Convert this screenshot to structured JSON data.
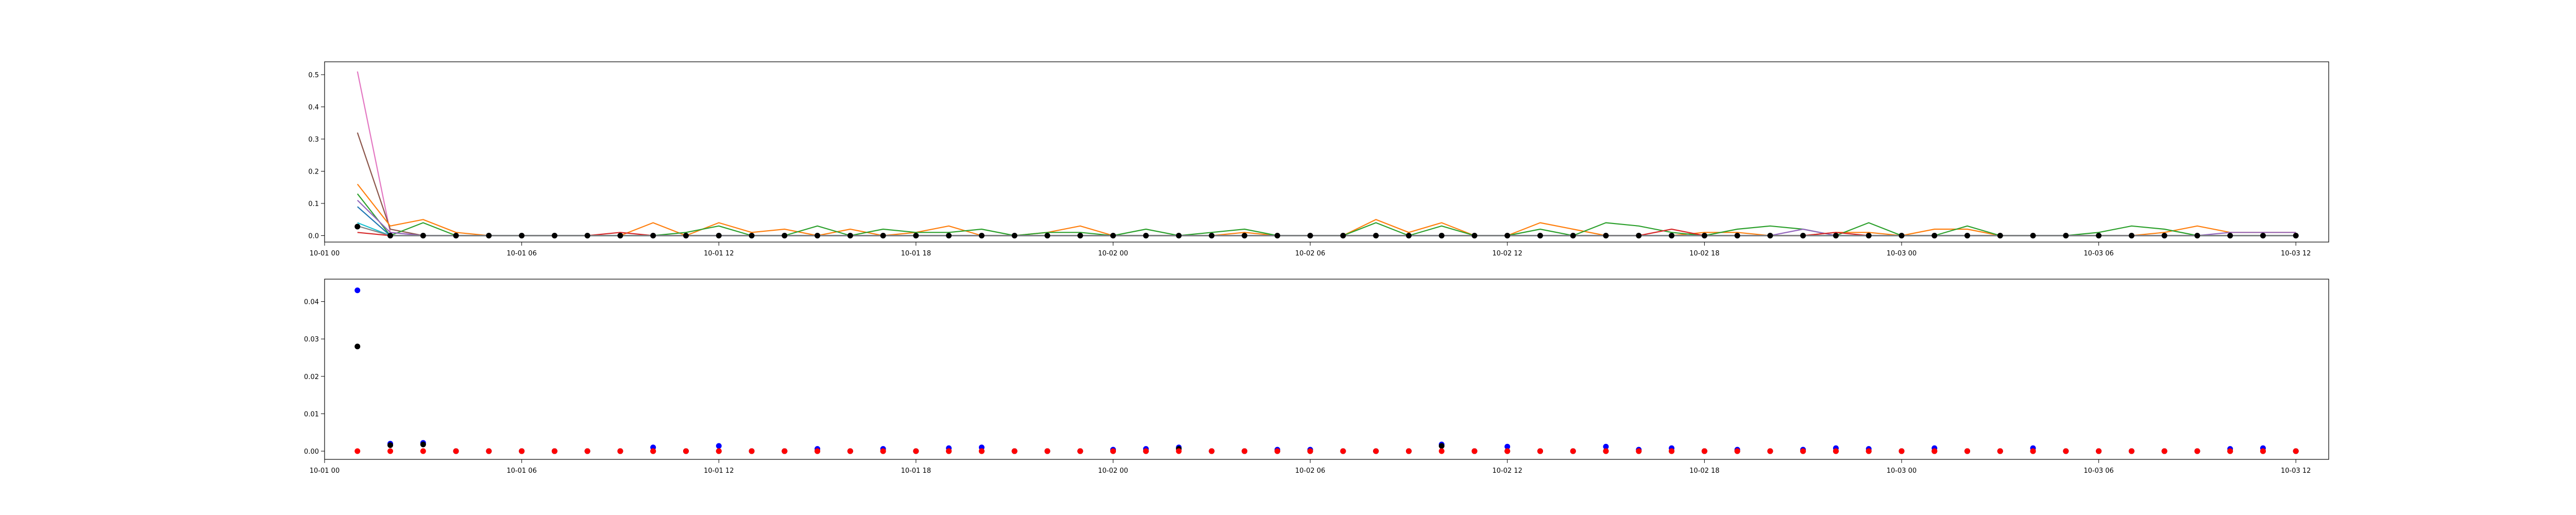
{
  "figure": {
    "background": "#ffffff"
  },
  "chart_data": [
    {
      "type": "line",
      "title": "",
      "xlabel": "",
      "ylabel": "",
      "grid": false,
      "legend": "none",
      "x_domain": [
        "10-01 00:00",
        "10-03 13:00"
      ],
      "ylim": [
        -0.02,
        0.54
      ],
      "x_ticks": [
        {
          "t": "10-01 00:00",
          "label": "10-01 00"
        },
        {
          "t": "10-01 06:00",
          "label": "10-01 06"
        },
        {
          "t": "10-01 12:00",
          "label": "10-01 12"
        },
        {
          "t": "10-01 18:00",
          "label": "10-01 18"
        },
        {
          "t": "10-02 00:00",
          "label": "10-02 00"
        },
        {
          "t": "10-02 06:00",
          "label": "10-02 06"
        },
        {
          "t": "10-02 12:00",
          "label": "10-02 12"
        },
        {
          "t": "10-02 18:00",
          "label": "10-02 18"
        },
        {
          "t": "10-03 00:00",
          "label": "10-03 00"
        },
        {
          "t": "10-03 06:00",
          "label": "10-03 06"
        },
        {
          "t": "10-03 12:00",
          "label": "10-03 12"
        }
      ],
      "y_ticks": [
        {
          "value": 0.0,
          "label": "0.0"
        },
        {
          "value": 0.1,
          "label": "0.1"
        },
        {
          "value": 0.2,
          "label": "0.2"
        },
        {
          "value": 0.3,
          "label": "0.3"
        },
        {
          "value": 0.4,
          "label": "0.4"
        },
        {
          "value": 0.5,
          "label": "0.5"
        }
      ],
      "x_start": "10-01 01:00",
      "x_step_hours": 1,
      "x_count": 60,
      "series": [
        {
          "color": "#e377c2",
          "style": "line",
          "values": [
            0.51,
            0.01,
            0,
            0,
            0,
            0,
            0,
            0,
            0,
            0,
            0,
            0,
            0,
            0,
            0,
            0,
            0,
            0,
            0,
            0,
            0,
            0,
            0,
            0,
            0,
            0,
            0,
            0,
            0,
            0,
            0,
            0,
            0,
            0,
            0,
            0,
            0,
            0,
            0,
            0,
            0,
            0,
            0,
            0,
            0,
            0,
            0,
            0,
            0,
            0,
            0,
            0,
            0,
            0,
            0,
            0,
            0,
            0,
            0,
            0
          ]
        },
        {
          "color": "#8c564b",
          "style": "line",
          "values": [
            0.32,
            0.02,
            0,
            0,
            0,
            0,
            0,
            0,
            0,
            0,
            0,
            0,
            0,
            0,
            0,
            0,
            0,
            0,
            0,
            0,
            0,
            0,
            0,
            0,
            0,
            0,
            0,
            0,
            0,
            0,
            0,
            0,
            0,
            0,
            0,
            0,
            0,
            0,
            0,
            0,
            0,
            0,
            0,
            0,
            0,
            0,
            0,
            0,
            0,
            0,
            0,
            0,
            0,
            0,
            0,
            0,
            0,
            0,
            0,
            0
          ]
        },
        {
          "color": "#ff7f0e",
          "style": "line",
          "values": [
            0.16,
            0.03,
            0.05,
            0.01,
            0,
            0,
            0,
            0,
            0,
            0.04,
            0,
            0.04,
            0.01,
            0.02,
            0,
            0.02,
            0,
            0.01,
            0.03,
            0,
            0,
            0.01,
            0.03,
            0,
            0,
            0,
            0,
            0.01,
            0,
            0,
            0,
            0.05,
            0.01,
            0.04,
            0,
            0,
            0.04,
            0.02,
            0,
            0,
            0,
            0.01,
            0.01,
            0,
            0,
            0.01,
            0.01,
            0,
            0.02,
            0.02,
            0,
            0,
            0,
            0,
            0,
            0.01,
            0.03,
            0.01,
            0.01,
            0.01
          ]
        },
        {
          "color": "#2ca02c",
          "style": "line",
          "values": [
            0.13,
            0,
            0.04,
            0,
            0,
            0,
            0,
            0,
            0,
            0,
            0.01,
            0.03,
            0,
            0,
            0.03,
            0,
            0.02,
            0.01,
            0.01,
            0.02,
            0,
            0.01,
            0.01,
            0,
            0.02,
            0,
            0.01,
            0.02,
            0,
            0,
            0,
            0.04,
            0,
            0.03,
            0,
            0,
            0.02,
            0,
            0.04,
            0.03,
            0.01,
            0,
            0.02,
            0.03,
            0.02,
            0,
            0.04,
            0,
            0,
            0.03,
            0,
            0,
            0,
            0.01,
            0.03,
            0.02,
            0,
            0,
            0,
            0
          ]
        },
        {
          "color": "#9467bd",
          "style": "line",
          "values": [
            0.11,
            0.01,
            0,
            0,
            0,
            0,
            0,
            0,
            0,
            0,
            0,
            0,
            0,
            0,
            0,
            0,
            0,
            0,
            0,
            0,
            0,
            0,
            0,
            0,
            0,
            0,
            0,
            0,
            0,
            0,
            0,
            0,
            0,
            0,
            0,
            0,
            0,
            0,
            0,
            0,
            0,
            0,
            0,
            0,
            0.02,
            0,
            0,
            0,
            0,
            0,
            0,
            0,
            0,
            0,
            0,
            0,
            0,
            0.01,
            0.01,
            0.01
          ]
        },
        {
          "color": "#1f77b4",
          "style": "line",
          "values": [
            0.09,
            0,
            0,
            0,
            0,
            0,
            0,
            0,
            0,
            0,
            0,
            0,
            0,
            0,
            0,
            0,
            0,
            0,
            0,
            0,
            0,
            0,
            0,
            0,
            0,
            0,
            0,
            0,
            0,
            0,
            0,
            0,
            0,
            0,
            0,
            0,
            0,
            0,
            0,
            0,
            0,
            0,
            0,
            0,
            0,
            0,
            0,
            0,
            0,
            0,
            0,
            0,
            0,
            0,
            0,
            0,
            0,
            0,
            0,
            0
          ]
        },
        {
          "color": "#d62728",
          "style": "line",
          "values": [
            0.01,
            0,
            0,
            0,
            0,
            0,
            0,
            0,
            0.01,
            0,
            0,
            0,
            0,
            0,
            0,
            0,
            0,
            0,
            0,
            0,
            0,
            0,
            0,
            0,
            0,
            0,
            0,
            0,
            0,
            0,
            0,
            0,
            0,
            0,
            0,
            0,
            0,
            0,
            0,
            0,
            0.02,
            0,
            0,
            0,
            0,
            0.01,
            0,
            0,
            0,
            0,
            0,
            0,
            0,
            0,
            0,
            0,
            0,
            0,
            0,
            0
          ]
        },
        {
          "color": "#17becf",
          "style": "line",
          "values": [
            0.04,
            0,
            0,
            0,
            0,
            0,
            0,
            0,
            0,
            0,
            0,
            0,
            0,
            0,
            0,
            0,
            0,
            0,
            0,
            0,
            0,
            0,
            0,
            0,
            0,
            0,
            0,
            0,
            0,
            0,
            0,
            0,
            0,
            0,
            0,
            0,
            0,
            0,
            0,
            0,
            0,
            0,
            0,
            0,
            0,
            0,
            0,
            0,
            0,
            0,
            0,
            0,
            0,
            0,
            0,
            0,
            0,
            0,
            0,
            0
          ]
        },
        {
          "color": "#7f7f7f",
          "style": "line",
          "values": [
            0.03,
            0,
            0,
            0,
            0,
            0,
            0,
            0,
            0,
            0,
            0,
            0,
            0,
            0,
            0,
            0,
            0,
            0,
            0,
            0,
            0,
            0,
            0,
            0,
            0,
            0,
            0,
            0,
            0,
            0,
            0,
            0,
            0,
            0,
            0,
            0,
            0,
            0,
            0,
            0,
            0,
            0,
            0,
            0,
            0,
            0,
            0,
            0,
            0,
            0,
            0,
            0,
            0,
            0,
            0,
            0,
            0,
            0,
            0,
            0
          ]
        },
        {
          "color": "#000000",
          "style": "scatter",
          "values": [
            0.028,
            0,
            0,
            0,
            0,
            0,
            0,
            0,
            0,
            0,
            0,
            0,
            0,
            0,
            0,
            0,
            0,
            0,
            0,
            0,
            0,
            0,
            0,
            0,
            0,
            0,
            0,
            0,
            0,
            0,
            0,
            0,
            0,
            0,
            0,
            0,
            0,
            0,
            0,
            0,
            0,
            0,
            0,
            0,
            0,
            0,
            0,
            0,
            0,
            0,
            0,
            0,
            0,
            0,
            0,
            0,
            0,
            0,
            0,
            0
          ]
        }
      ]
    },
    {
      "type": "scatter",
      "title": "",
      "xlabel": "",
      "ylabel": "",
      "grid": false,
      "legend": "none",
      "x_domain": [
        "10-01 00:00",
        "10-03 13:00"
      ],
      "ylim": [
        -0.0022,
        0.046
      ],
      "x_ticks": [
        {
          "t": "10-01 00:00",
          "label": "10-01 00"
        },
        {
          "t": "10-01 06:00",
          "label": "10-01 06"
        },
        {
          "t": "10-01 12:00",
          "label": "10-01 12"
        },
        {
          "t": "10-01 18:00",
          "label": "10-01 18"
        },
        {
          "t": "10-02 00:00",
          "label": "10-02 00"
        },
        {
          "t": "10-02 06:00",
          "label": "10-02 06"
        },
        {
          "t": "10-02 12:00",
          "label": "10-02 12"
        },
        {
          "t": "10-02 18:00",
          "label": "10-02 18"
        },
        {
          "t": "10-03 00:00",
          "label": "10-03 00"
        },
        {
          "t": "10-03 06:00",
          "label": "10-03 06"
        },
        {
          "t": "10-03 12:00",
          "label": "10-03 12"
        }
      ],
      "y_ticks": [
        {
          "value": 0.0,
          "label": "0.00"
        },
        {
          "value": 0.01,
          "label": "0.01"
        },
        {
          "value": 0.02,
          "label": "0.02"
        },
        {
          "value": 0.03,
          "label": "0.03"
        },
        {
          "value": 0.04,
          "label": "0.04"
        }
      ],
      "x_start": "10-01 01:00",
      "x_step_hours": 1,
      "x_count": 60,
      "series": [
        {
          "color": "#0000ff",
          "style": "scatter",
          "values": [
            0.043,
            0.002,
            0.0022,
            0,
            0,
            0,
            0,
            0,
            0,
            0.001,
            0,
            0.0014,
            0,
            0,
            0.0006,
            0,
            0.0006,
            0,
            0.0008,
            0.001,
            0,
            0,
            0,
            0.0004,
            0.0006,
            0.001,
            0,
            0,
            0.0004,
            0.0004,
            0,
            0,
            0,
            0.0018,
            0,
            0.0012,
            0,
            0,
            0.0012,
            0.0004,
            0.0008,
            0,
            0.0004,
            0,
            0.0004,
            0.0008,
            0.0006,
            0,
            0.0008,
            0,
            0,
            0.0008,
            0,
            0,
            0,
            0,
            0,
            0.0006,
            0.0008,
            0
          ]
        },
        {
          "color": "#000000",
          "style": "scatter",
          "values": [
            0.028,
            0.0016,
            0.0018,
            0,
            0,
            0,
            0,
            0,
            0,
            0,
            0,
            0,
            0,
            0,
            0,
            0,
            0,
            0,
            0,
            0,
            0,
            0,
            0,
            0,
            0,
            0.0006,
            0,
            0,
            0,
            0,
            0,
            0,
            0,
            0.0014,
            0,
            0,
            0,
            0,
            0,
            0,
            0,
            0,
            0,
            0,
            0,
            0,
            0,
            0,
            0,
            0,
            0,
            0,
            0,
            0,
            0,
            0,
            0,
            0,
            0,
            0
          ]
        },
        {
          "color": "#ff0000",
          "style": "scatter",
          "values": [
            0,
            0,
            0,
            0,
            0,
            0,
            0,
            0,
            0,
            0,
            0,
            0,
            0,
            0,
            0,
            0,
            0,
            0,
            0,
            0,
            0,
            0,
            0,
            0,
            0,
            0,
            0,
            0,
            0,
            0,
            0,
            0,
            0,
            0,
            0,
            0,
            0,
            0,
            0,
            0,
            0,
            0,
            0,
            0,
            0,
            0,
            0,
            0,
            0,
            0,
            0,
            0,
            0,
            0,
            0,
            0,
            0,
            0,
            0,
            0
          ]
        }
      ]
    }
  ]
}
